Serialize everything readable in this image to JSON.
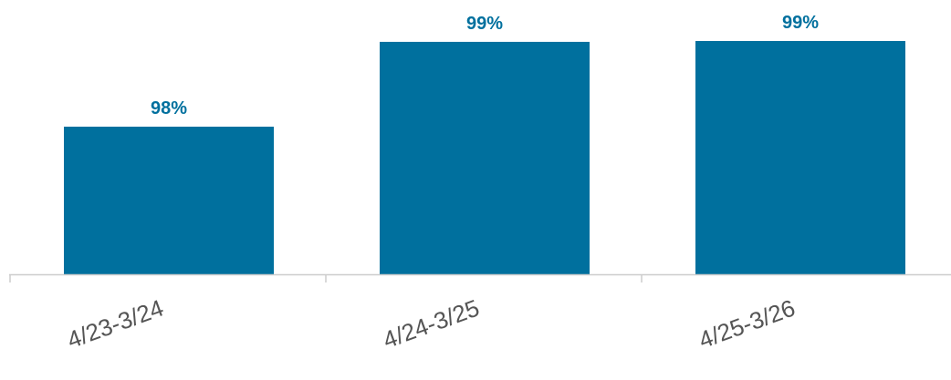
{
  "chart_data": {
    "type": "bar",
    "categories": [
      "4/23-3/24",
      "4/24-3/25",
      "4/25-3/26"
    ],
    "values": [
      98.0,
      99.0,
      99.01
    ],
    "labels": [
      "98%",
      "99%",
      "99%"
    ],
    "title": "",
    "xlabel": "",
    "ylabel": "",
    "ylim": [
      96.26,
      99.01
    ],
    "grid": false,
    "colors": {
      "bar": "#00709e",
      "data_label": "#00709e",
      "tick_label": "#555555",
      "axis": "#cccccc"
    }
  }
}
